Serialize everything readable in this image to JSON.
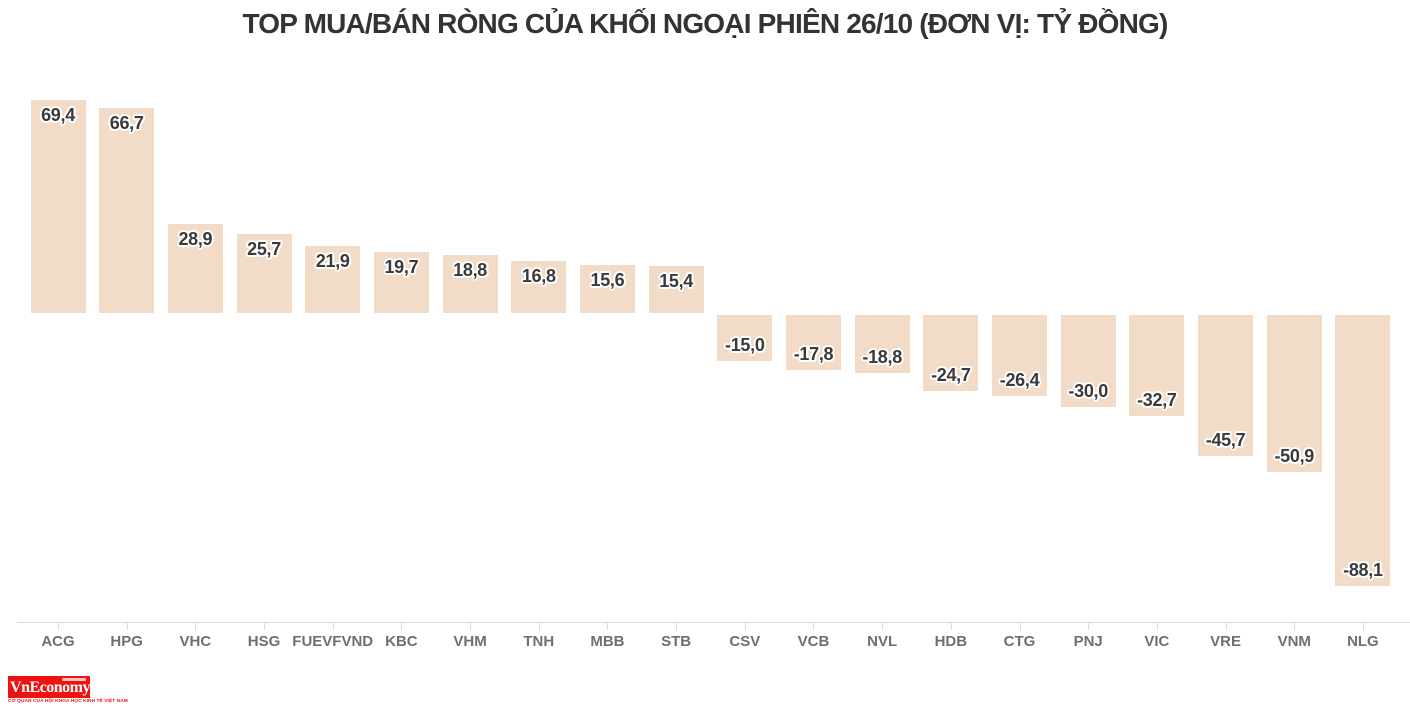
{
  "chart_data": {
    "type": "bar",
    "title": "TOP MUA/BÁN RÒNG CỦA KHỐI NGOẠI PHIÊN 26/10 (ĐƠN VỊ: TỶ ĐỒNG)",
    "unit_note": "ĐƠN VỊ: TỶ ĐỒNG",
    "session_date": "26/10",
    "categories": [
      "ACG",
      "HPG",
      "VHC",
      "HSG",
      "FUEVFVND",
      "KBC",
      "VHM",
      "TNH",
      "MBB",
      "STB",
      "CSV",
      "VCB",
      "NVL",
      "HDB",
      "CTG",
      "PNJ",
      "VIC",
      "VRE",
      "VNM",
      "NLG"
    ],
    "values": [
      69.4,
      66.7,
      28.9,
      25.7,
      21.9,
      19.7,
      18.8,
      16.8,
      15.6,
      15.4,
      -15.0,
      -17.8,
      -18.8,
      -24.7,
      -26.4,
      -30.0,
      -32.7,
      -45.7,
      -50.9,
      -88.1
    ],
    "value_labels": [
      "69,4",
      "66,7",
      "28,9",
      "25,7",
      "21,9",
      "19,7",
      "18,8",
      "16,8",
      "15,6",
      "15,4",
      "-15,0",
      "-17,8",
      "-18,8",
      "-24,7",
      "-26,4",
      "-30,0",
      "-32,7",
      "-45,7",
      "-50,9",
      "-88,1"
    ],
    "bar_color": "#f2dcc8",
    "value_label_color": "#3a3a3a",
    "tick_label_color": "#6f6f6f",
    "axis_line_color": "#dcdcdc",
    "title_color": "#333333",
    "ylim": [
      -95,
      75
    ],
    "baseline": 0,
    "grid": false,
    "legend_position": "none"
  },
  "logo": {
    "wordmark": "VnEconomy",
    "tagline": "CƠ QUAN CỦA HỘI KHOA HỌC KINH TẾ VIỆT NAM",
    "brand_color": "#ee1310",
    "text_color": "#ffffff"
  }
}
